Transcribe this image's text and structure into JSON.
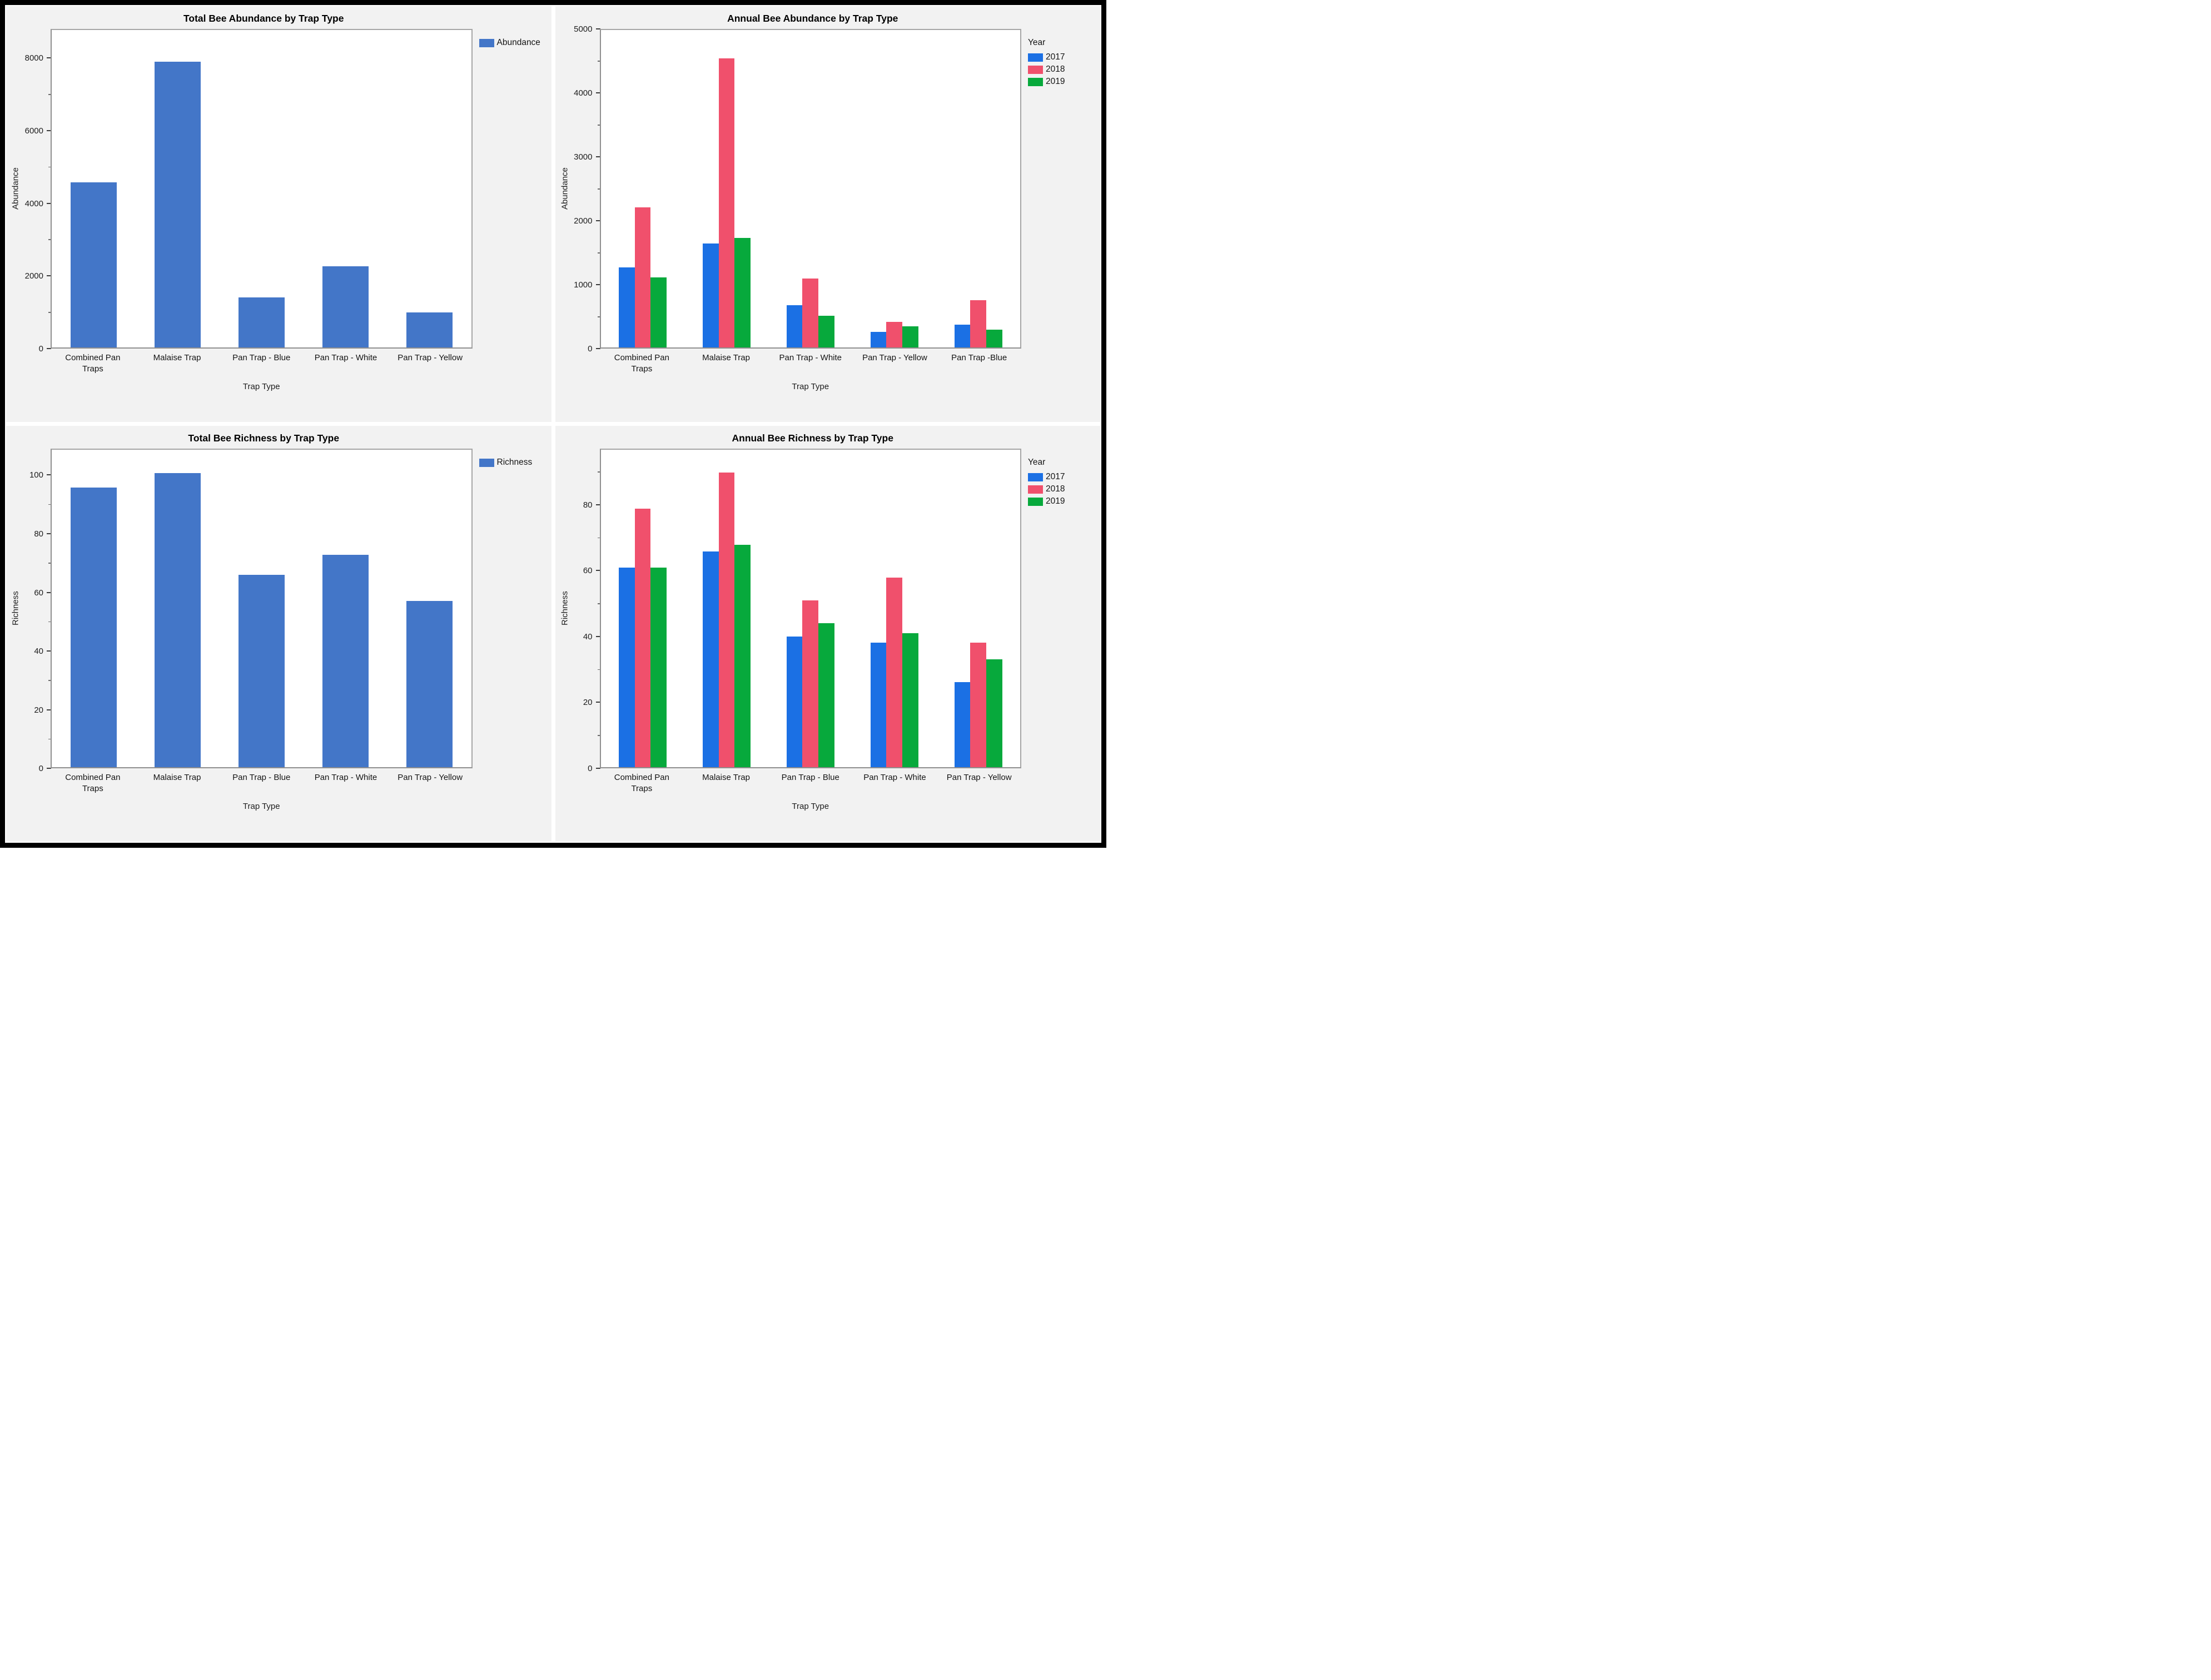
{
  "colors": {
    "single_series_blue": "#4376C8",
    "year_2017_blue": "#1B70E4",
    "year_2018_red": "#F0506C",
    "year_2019_green": "#07A93C",
    "panel_background": "#F2F2F2",
    "plot_background": "#FFFFFF",
    "plot_border_gray": "#A6A6A6",
    "outer_border_black": "#000000"
  },
  "chart_data": [
    {
      "type": "bar",
      "title": "Total Bee Abundance by Trap Type",
      "xlabel": "Trap Type",
      "ylabel": "Abundance",
      "ylim": [
        0,
        8800
      ],
      "yticks": [
        0,
        2000,
        4000,
        6000,
        8000
      ],
      "grid": false,
      "legend_title": "",
      "legend_position": "right-top",
      "categories": [
        "Combined Pan Traps",
        "Malaise Trap",
        "Pan Trap - Blue",
        "Pan Trap - White",
        "Pan Trap - Yellow"
      ],
      "series": [
        {
          "name": "Abundance",
          "color": "#4376C8",
          "values": [
            4580,
            7920,
            1380,
            2250,
            970
          ]
        }
      ]
    },
    {
      "type": "bar",
      "title": "Annual Bee Abundance by Trap Type",
      "xlabel": "Trap Type",
      "ylabel": "Abundance",
      "ylim": [
        0,
        5000
      ],
      "yticks": [
        0,
        1000,
        2000,
        3000,
        4000,
        5000
      ],
      "grid": false,
      "legend_title": "Year",
      "legend_position": "right-top",
      "categories": [
        "Combined Pan Traps",
        "Malaise Trap",
        "Pan Trap - White",
        "Pan Trap - Yellow",
        "Pan Trap -Blue"
      ],
      "series": [
        {
          "name": "2017",
          "color": "#1B70E4",
          "values": [
            1260,
            1640,
            670,
            245,
            360
          ]
        },
        {
          "name": "2018",
          "color": "#F0506C",
          "values": [
            2210,
            4550,
            1085,
            400,
            745
          ]
        },
        {
          "name": "2019",
          "color": "#07A93C",
          "values": [
            1100,
            1725,
            500,
            330,
            280
          ]
        }
      ]
    },
    {
      "type": "bar",
      "title": "Total Bee Richness by Trap Type",
      "xlabel": "Trap Type",
      "ylabel": "Richness",
      "ylim": [
        0,
        109
      ],
      "yticks": [
        0,
        20,
        40,
        60,
        80,
        100
      ],
      "grid": false,
      "legend_title": "",
      "legend_position": "right-top",
      "categories": [
        "Combined Pan Traps",
        "Malaise Trap",
        "Pan Trap - Blue",
        "Pan Trap - White",
        "Pan Trap - Yellow"
      ],
      "series": [
        {
          "name": "Richness",
          "color": "#4376C8",
          "values": [
            96,
            101,
            66,
            73,
            57
          ]
        }
      ]
    },
    {
      "type": "bar",
      "title": "Annual Bee Richness by Trap Type",
      "xlabel": "Trap Type",
      "ylabel": "Richness",
      "ylim": [
        0,
        97
      ],
      "yticks": [
        0,
        20,
        40,
        60,
        80
      ],
      "grid": false,
      "legend_title": "Year",
      "legend_position": "right-top",
      "categories": [
        "Combined Pan Traps",
        "Malaise Trap",
        "Pan Trap - Blue",
        "Pan Trap - White",
        "Pan Trap - Yellow"
      ],
      "series": [
        {
          "name": "2017",
          "color": "#1B70E4",
          "values": [
            61,
            66,
            40,
            38,
            26
          ]
        },
        {
          "name": "2018",
          "color": "#F0506C",
          "values": [
            79,
            90,
            51,
            58,
            38
          ]
        },
        {
          "name": "2019",
          "color": "#07A93C",
          "values": [
            61,
            68,
            44,
            41,
            33
          ]
        }
      ]
    }
  ]
}
